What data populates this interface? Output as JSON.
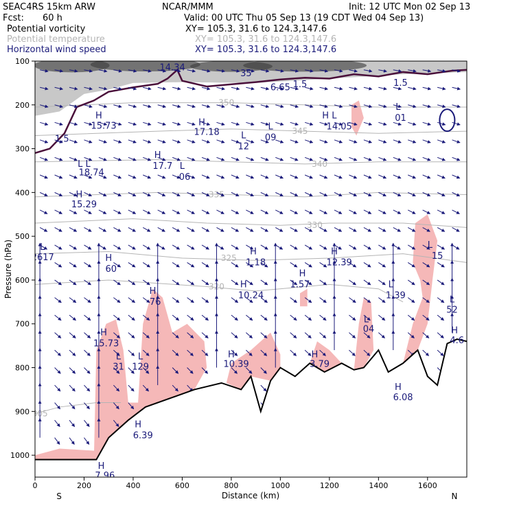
{
  "header": {
    "model": "SEAC4RS 15km ARW",
    "org": "NCAR/MMM",
    "init": "Init: 12 UTC Mon 02 Sep 13",
    "fcst_label": "Fcst:",
    "fcst_value": "60 h",
    "valid": "Valid: 00 UTC Thu 05 Sep 13 (19 CDT Wed 04 Sep 13)"
  },
  "fields": [
    {
      "name": "Potential vorticity",
      "xy": "XY= 105.3, 31.6 to 124.3,147.6",
      "color": "#000000"
    },
    {
      "name": "Potential temperature",
      "xy": "XY= 105.3, 31.6 to 124.3,147.6",
      "color": "#b4b4b4"
    },
    {
      "name": "Horizontal wind speed",
      "xy": "XY= 105.3, 31.6 to 124.3,147.6",
      "color": "#1a1a7a"
    }
  ],
  "colors": {
    "pv_shade": "#9a9a9a",
    "pv_line": "#4a0f3a",
    "theta": "#b4b4b4",
    "wind": "#1a1a7a",
    "ascent_shade": "#f5b8b8",
    "terrain": "#000000"
  },
  "chart_data": {
    "type": "cross-section",
    "xlabel": "Distance (km)",
    "ylabel": "Pressure (hPa)",
    "xlim": [
      0,
      1760
    ],
    "ylim": [
      1050,
      100
    ],
    "x_ticks": [
      0,
      200,
      400,
      600,
      800,
      1000,
      1200,
      1400,
      1600
    ],
    "y_ticks": [
      100,
      200,
      300,
      400,
      500,
      600,
      700,
      800,
      900,
      1000
    ],
    "x_end_labels": {
      "left": "S",
      "right": "N"
    },
    "terrain": [
      [
        0,
        1010
      ],
      [
        250,
        1010
      ],
      [
        300,
        960
      ],
      [
        380,
        920
      ],
      [
        450,
        890
      ],
      [
        550,
        870
      ],
      [
        650,
        850
      ],
      [
        760,
        835
      ],
      [
        840,
        850
      ],
      [
        880,
        820
      ],
      [
        920,
        900
      ],
      [
        960,
        830
      ],
      [
        1000,
        800
      ],
      [
        1060,
        820
      ],
      [
        1120,
        790
      ],
      [
        1180,
        810
      ],
      [
        1250,
        790
      ],
      [
        1300,
        805
      ],
      [
        1340,
        800
      ],
      [
        1400,
        760
      ],
      [
        1440,
        810
      ],
      [
        1500,
        790
      ],
      [
        1560,
        760
      ],
      [
        1600,
        820
      ],
      [
        1640,
        840
      ],
      [
        1680,
        745
      ],
      [
        1720,
        735
      ],
      [
        1760,
        740
      ]
    ],
    "theta_contours": [
      {
        "label": "305",
        "points": [
          [
            0,
            905
          ],
          [
            100,
            890
          ],
          [
            250,
            880
          ],
          [
            350,
            880
          ]
        ],
        "label_at": [
          20,
          905
        ]
      },
      {
        "label": "320",
        "points": [
          [
            0,
            610
          ],
          [
            300,
            600
          ],
          [
            700,
            615
          ],
          [
            900,
            625
          ],
          [
            1200,
            610
          ],
          [
            1400,
            620
          ],
          [
            1500,
            650
          ]
        ],
        "label_at": [
          740,
          615
        ]
      },
      {
        "label": "325",
        "points": [
          [
            0,
            540
          ],
          [
            300,
            535
          ],
          [
            600,
            550
          ],
          [
            900,
            555
          ],
          [
            1200,
            550
          ],
          [
            1500,
            540
          ],
          [
            1760,
            560
          ]
        ],
        "label_at": [
          790,
          550
        ]
      },
      {
        "label": "330",
        "points": [
          [
            0,
            470
          ],
          [
            400,
            460
          ],
          [
            700,
            470
          ],
          [
            1000,
            475
          ],
          [
            1200,
            470
          ],
          [
            1500,
            470
          ],
          [
            1760,
            480
          ]
        ],
        "label_at": [
          1140,
          475
        ]
      },
      {
        "label": "335",
        "points": [
          [
            0,
            410
          ],
          [
            500,
            400
          ],
          [
            800,
            405
          ],
          [
            1100,
            410
          ],
          [
            1400,
            400
          ],
          [
            1760,
            405
          ]
        ],
        "label_at": [
          740,
          405
        ]
      },
      {
        "label": "340",
        "points": [
          [
            0,
            330
          ],
          [
            500,
            325
          ],
          [
            800,
            330
          ],
          [
            1100,
            335
          ],
          [
            1400,
            330
          ],
          [
            1760,
            330
          ]
        ],
        "label_at": [
          1160,
          335
        ]
      },
      {
        "label": "345",
        "points": [
          [
            0,
            270
          ],
          [
            500,
            260
          ],
          [
            800,
            255
          ],
          [
            1100,
            260
          ],
          [
            1400,
            265
          ],
          [
            1760,
            260
          ]
        ],
        "label_at": [
          1080,
          260
        ]
      },
      {
        "label": "350",
        "points": [
          [
            0,
            205
          ],
          [
            400,
            195
          ],
          [
            800,
            195
          ],
          [
            1100,
            200
          ],
          [
            1400,
            205
          ],
          [
            1760,
            205
          ]
        ],
        "label_at": [
          780,
          195
        ]
      }
    ],
    "annotations": [
      {
        "text": "H",
        "x": 260,
        "y": 225
      },
      {
        "text": "15.73",
        "x": 280,
        "y": 248
      },
      {
        "text": "1.5",
        "x": 110,
        "y": 278
      },
      {
        "text": "L L",
        "x": 200,
        "y": 335
      },
      {
        "text": "18.74",
        "x": 230,
        "y": 355
      },
      {
        "text": "H",
        "x": 500,
        "y": 315
      },
      {
        "text": "17.7",
        "x": 520,
        "y": 340
      },
      {
        "text": "L",
        "x": 600,
        "y": 340
      },
      {
        "text": "06",
        "x": 610,
        "y": 365
      },
      {
        "text": "H",
        "x": 180,
        "y": 405
      },
      {
        "text": "15.29",
        "x": 200,
        "y": 428
      },
      {
        "text": "L",
        "x": 30,
        "y": 525
      },
      {
        "text": "12617",
        "x": 20,
        "y": 548
      },
      {
        "text": "H",
        "x": 300,
        "y": 550
      },
      {
        "text": "60",
        "x": 310,
        "y": 575
      },
      {
        "text": "H",
        "x": 680,
        "y": 240
      },
      {
        "text": "17.18",
        "x": 700,
        "y": 262
      },
      {
        "text": "L",
        "x": 850,
        "y": 270
      },
      {
        "text": "12",
        "x": 850,
        "y": 295
      },
      {
        "text": "L",
        "x": 960,
        "y": 250
      },
      {
        "text": "09",
        "x": 960,
        "y": 275
      },
      {
        "text": "H L",
        "x": 1200,
        "y": 225
      },
      {
        "text": "14.05",
        "x": 1240,
        "y": 250
      },
      {
        "text": "L",
        "x": 1480,
        "y": 205
      },
      {
        "text": "01",
        "x": 1490,
        "y": 230
      },
      {
        "text": "14.34",
        "x": 560,
        "y": 115
      },
      {
        "text": "35",
        "x": 860,
        "y": 128
      },
      {
        "text": "6.65",
        "x": 1000,
        "y": 160
      },
      {
        "text": "1.5",
        "x": 1080,
        "y": 153
      },
      {
        "text": "1.5",
        "x": 1490,
        "y": 150
      },
      {
        "text": "H",
        "x": 890,
        "y": 535
      },
      {
        "text": "1.18",
        "x": 900,
        "y": 560
      },
      {
        "text": "H",
        "x": 1220,
        "y": 535
      },
      {
        "text": "12.39",
        "x": 1240,
        "y": 560
      },
      {
        "text": "H",
        "x": 1090,
        "y": 585
      },
      {
        "text": "1.57",
        "x": 1080,
        "y": 610
      },
      {
        "text": "H",
        "x": 850,
        "y": 610
      },
      {
        "text": "10.24",
        "x": 880,
        "y": 635
      },
      {
        "text": "L",
        "x": 1450,
        "y": 610
      },
      {
        "text": "1.39",
        "x": 1470,
        "y": 635
      },
      {
        "text": "L",
        "x": 1610,
        "y": 520
      },
      {
        "text": "15",
        "x": 1640,
        "y": 545
      },
      {
        "text": "L",
        "x": 1700,
        "y": 645
      },
      {
        "text": "52",
        "x": 1700,
        "y": 668
      },
      {
        "text": "H",
        "x": 480,
        "y": 625
      },
      {
        "text": "76",
        "x": 490,
        "y": 650
      },
      {
        "text": "H",
        "x": 280,
        "y": 720
      },
      {
        "text": "15.73",
        "x": 290,
        "y": 745
      },
      {
        "text": "L",
        "x": 1350,
        "y": 690
      },
      {
        "text": "04",
        "x": 1360,
        "y": 712
      },
      {
        "text": "H",
        "x": 1710,
        "y": 715
      },
      {
        "text": "4.6",
        "x": 1720,
        "y": 738
      },
      {
        "text": "L",
        "x": 340,
        "y": 775
      },
      {
        "text": "31",
        "x": 340,
        "y": 798
      },
      {
        "text": "L",
        "x": 430,
        "y": 775
      },
      {
        "text": "129",
        "x": 430,
        "y": 798
      },
      {
        "text": "H",
        "x": 800,
        "y": 770
      },
      {
        "text": "10.39",
        "x": 820,
        "y": 792
      },
      {
        "text": "H",
        "x": 1140,
        "y": 770
      },
      {
        "text": "3.79",
        "x": 1160,
        "y": 792
      },
      {
        "text": "H",
        "x": 1480,
        "y": 845
      },
      {
        "text": "6.08",
        "x": 1500,
        "y": 868
      },
      {
        "text": "H",
        "x": 420,
        "y": 930
      },
      {
        "text": "6.39",
        "x": 440,
        "y": 955
      },
      {
        "text": "H",
        "x": 270,
        "y": 1025
      },
      {
        "text": "7.96",
        "x": 285,
        "y": 1047
      }
    ]
  }
}
